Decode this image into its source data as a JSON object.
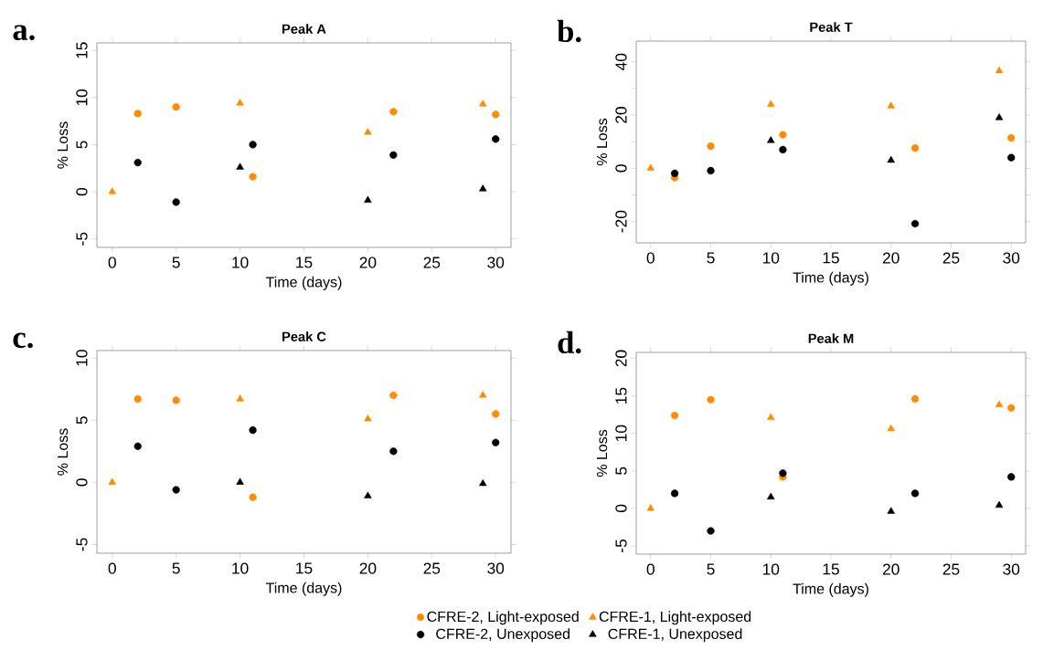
{
  "chart_data": [
    {
      "type": "scatter",
      "title": "Peak A",
      "xlabel": "Time (days)",
      "ylabel": "% Loss",
      "annotations": [
        "a."
      ],
      "xlim": [
        -1.2,
        31.2
      ],
      "xticks": [
        0,
        5,
        10,
        15,
        20,
        25,
        30
      ],
      "ylim": [
        -5.9,
        15.8
      ],
      "yticks": [
        -5,
        0,
        5,
        10,
        15
      ],
      "series": [
        {
          "color": "#ff8c00",
          "marker": "circle",
          "x": [
            2,
            5,
            11,
            22,
            30
          ],
          "values": [
            8.3,
            9.0,
            1.6,
            8.5,
            8.2
          ]
        },
        {
          "color": "#ff8c00",
          "marker": "triangle",
          "x": [
            0,
            10,
            20,
            29
          ],
          "values": [
            0,
            9.4,
            6.3,
            9.3
          ]
        },
        {
          "color": "#000000",
          "marker": "circle",
          "x": [
            2,
            5,
            11,
            22,
            30
          ],
          "values": [
            3.1,
            -1.1,
            5.0,
            3.9,
            5.6
          ]
        },
        {
          "color": "#000000",
          "marker": "triangle",
          "x": [
            10,
            20,
            29
          ],
          "values": [
            2.6,
            -0.9,
            0.3
          ]
        }
      ]
    },
    {
      "type": "scatter",
      "title": "Peak T",
      "xlabel": "Time (days)",
      "ylabel": "% Loss",
      "annotations": [
        "b."
      ],
      "xlim": [
        -1.2,
        31.2
      ],
      "xticks": [
        0,
        5,
        10,
        15,
        20,
        25,
        30
      ],
      "ylim": [
        -28,
        47.8
      ],
      "yticks": [
        -20,
        {
          "value": -10,
          "label": null
        },
        0,
        {
          "value": 10,
          "label": null
        },
        20,
        {
          "value": 30,
          "label": null
        },
        40
      ],
      "series": [
        {
          "color": "#ff8c00",
          "marker": "circle",
          "x": [
            2,
            5,
            11,
            22,
            30
          ],
          "values": [
            -3.5,
            8.3,
            12.6,
            7.6,
            11.4
          ]
        },
        {
          "color": "#ff8c00",
          "marker": "triangle",
          "x": [
            0,
            10,
            20,
            29
          ],
          "values": [
            0,
            24,
            23.4,
            36.6
          ]
        },
        {
          "color": "#000000",
          "marker": "circle",
          "x": [
            2,
            5,
            11,
            22,
            30
          ],
          "values": [
            -1.9,
            -0.9,
            7.0,
            -20.8,
            4.0
          ]
        },
        {
          "color": "#000000",
          "marker": "triangle",
          "x": [
            10,
            20,
            29
          ],
          "values": [
            10.4,
            3.0,
            19.0
          ]
        }
      ]
    },
    {
      "type": "scatter",
      "title": "Peak C",
      "xlabel": "Time (days)",
      "ylabel": "% Loss",
      "annotations": [
        "c."
      ],
      "xlim": [
        -1.2,
        31.2
      ],
      "xticks": [
        0,
        5,
        10,
        15,
        20,
        25,
        30
      ],
      "ylim": [
        -5.7,
        10.6
      ],
      "yticks": [
        -5,
        0,
        5,
        10
      ],
      "legend": "bottom",
      "series": [
        {
          "name": "CFRE-2, Light-exposed",
          "color": "#ff8c00",
          "marker": "circle",
          "x": [
            2,
            5,
            11,
            22,
            30
          ],
          "values": [
            6.7,
            6.6,
            -1.2,
            7.0,
            5.5
          ]
        },
        {
          "name": "CFRE-1, Light-exposed",
          "color": "#ff8c00",
          "marker": "triangle",
          "x": [
            0,
            10,
            20,
            29
          ],
          "values": [
            0,
            6.7,
            5.1,
            7.0
          ]
        },
        {
          "name": "CFRE-2, Unexposed",
          "color": "#000000",
          "marker": "circle",
          "x": [
            2,
            5,
            11,
            22,
            30
          ],
          "values": [
            2.9,
            -0.6,
            4.2,
            2.5,
            3.2
          ]
        },
        {
          "name": "CFRE-1, Unexposed",
          "color": "#000000",
          "marker": "triangle",
          "x": [
            10,
            20,
            29
          ],
          "values": [
            0,
            -1.1,
            -0.1
          ]
        }
      ]
    },
    {
      "type": "scatter",
      "title": "Peak M",
      "xlabel": "Time (days)",
      "ylabel": "% Loss",
      "annotations": [
        "d."
      ],
      "xlim": [
        -1.2,
        31.2
      ],
      "xticks": [
        0,
        5,
        10,
        15,
        20,
        25,
        30
      ],
      "ylim": [
        -6.1,
        20.8
      ],
      "yticks": [
        -5,
        0,
        5,
        10,
        15,
        20
      ],
      "series": [
        {
          "color": "#ff8c00",
          "marker": "circle",
          "x": [
            2,
            5,
            11,
            22,
            30
          ],
          "values": [
            12.4,
            14.5,
            4.2,
            14.6,
            13.4
          ]
        },
        {
          "color": "#ff8c00",
          "marker": "triangle",
          "x": [
            0,
            10,
            20,
            29
          ],
          "values": [
            0,
            12.1,
            10.6,
            13.8
          ]
        },
        {
          "color": "#000000",
          "marker": "circle",
          "x": [
            2,
            5,
            11,
            22,
            30
          ],
          "values": [
            2.0,
            -3.0,
            4.7,
            2.0,
            4.2
          ]
        },
        {
          "color": "#000000",
          "marker": "triangle",
          "x": [
            10,
            20,
            29
          ],
          "values": [
            1.5,
            -0.4,
            0.4
          ]
        }
      ]
    }
  ]
}
